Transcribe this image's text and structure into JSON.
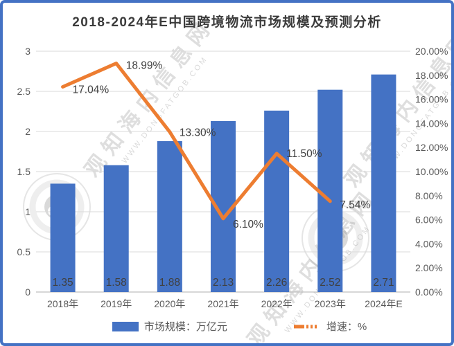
{
  "title": "2018-2024年E中国跨境物流市场规模及预测分析",
  "colors": {
    "bar": "#4472C4",
    "line": "#ED7D31",
    "border": "#4472C4",
    "grid": "#D9D9D9",
    "axis_line": "#BFBFBF",
    "axis_text": "#595959",
    "label_text": "#404040",
    "title_text": "#3b3b3b"
  },
  "chart_data": {
    "type": "bar",
    "subtype": "bar+line combo, line on secondary axis",
    "title": "2018-2024年E中国跨境物流市场规模及预测分析",
    "categories": [
      "2018年",
      "2019年",
      "2020年",
      "2021年",
      "2022年",
      "2023年",
      "2024年E"
    ],
    "series": [
      {
        "name": "市场规模：万亿元",
        "type": "bar",
        "axis": "left",
        "values": [
          1.35,
          1.58,
          1.88,
          2.13,
          2.26,
          2.52,
          2.71
        ],
        "labels": [
          "1.35",
          "1.58",
          "1.88",
          "2.13",
          "2.26",
          "2.52",
          "2.71"
        ]
      },
      {
        "name": "增速：%",
        "type": "line",
        "axis": "right",
        "values": [
          17.04,
          18.99,
          13.3,
          6.1,
          11.5,
          7.54
        ],
        "labels": [
          "17.04%",
          "18.99%",
          "13.30%",
          "6.10%",
          "11.50%",
          "7.54%"
        ]
      }
    ],
    "left_axis": {
      "min": 0,
      "max": 3,
      "ticks": [
        "3",
        "2.5",
        "2",
        "1.5",
        "1",
        "0.5",
        "0"
      ]
    },
    "right_axis": {
      "min": 0,
      "max": 20,
      "ticks": [
        "20.00%",
        "18.00%",
        "16.00%",
        "14.00%",
        "12.00%",
        "10.00%",
        "8.00%",
        "6.00%",
        "4.00%",
        "2.00%",
        "0.00%"
      ]
    },
    "grid": true,
    "legend_position": "bottom"
  },
  "legend": {
    "bar_label": "市场规模：万亿元",
    "line_label": "增速：%"
  },
  "watermark": {
    "cn": "观知海内信息网",
    "url": "WWW.DONGFATGOB.COM"
  }
}
